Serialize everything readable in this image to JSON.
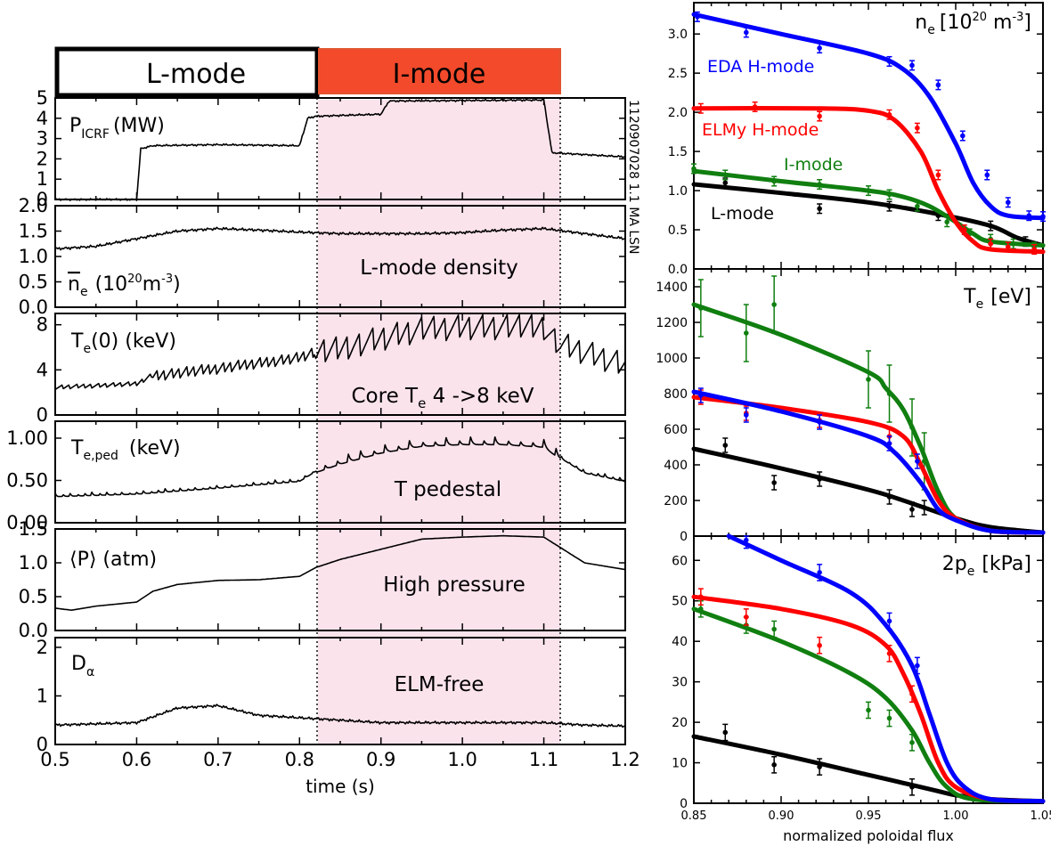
{
  "colors": {
    "imode_band": "#fbe3ec",
    "imode_bar": "#f24a2b",
    "blue": "#0000ff",
    "red": "#ff0000",
    "green": "#107f10",
    "black": "#000000"
  },
  "mode_bar": {
    "lmode_label": "L-mode",
    "imode_label": "I-mode"
  },
  "shot_label": "1120907028  1.1 MA LSN",
  "left_xaxis": {
    "label": "time (s)",
    "ticks": [
      "0.5",
      "0.6",
      "0.7",
      "0.8",
      "0.9",
      "1.0",
      "1.1",
      "1.2"
    ]
  },
  "right_xaxis": {
    "label": "normalized poloidal flux",
    "ticks": [
      "0.85",
      "0.90",
      "0.95",
      "1.00",
      "1.05"
    ]
  },
  "panels": {
    "picrf": {
      "label_main": "P",
      "label_sub": "ICRF",
      "label_rest": "(MW)",
      "yticks": [
        "0",
        "1",
        "2",
        "3",
        "4",
        "5"
      ]
    },
    "ne": {
      "label_main": "n",
      "label_sub": "e",
      "label_rest": "(10",
      "label_sup": "20",
      "label_rest2": "m",
      "label_sup2": "-3",
      "label_end": ")",
      "annotation": "L-mode density",
      "yticks": [
        "0.0",
        "0.5",
        "1.0",
        "1.5",
        "2.0"
      ]
    },
    "te0": {
      "label_main": "T",
      "label_sub": "e",
      "label_rest": "(0)  (keV)",
      "annotation_pre": "Core T",
      "annotation_sub": "e",
      "annotation_post": " 4 ->8 keV",
      "yticks": [
        "0",
        "4",
        "8"
      ]
    },
    "teped": {
      "label_main": "T",
      "label_sub": "e,ped",
      "label_rest": "(keV)",
      "annotation": "T pedestal",
      "yticks": [
        "0.00",
        "0.50",
        "1.00"
      ]
    },
    "pavg": {
      "label": "⟨P⟩ (atm)",
      "annotation": "High pressure",
      "yticks": [
        "0.0",
        "0.5",
        "1.0",
        "1.5"
      ]
    },
    "dalpha": {
      "label_main": "D",
      "label_sub": "α",
      "annotation": "ELM-free",
      "yticks": [
        "0",
        "1",
        "2"
      ]
    }
  },
  "right_panels": {
    "ne_prof": {
      "title_main": "n",
      "title_sub": "e",
      "title_rest": "[10",
      "title_sup": "20",
      "title_rest2": " m",
      "title_sup2": "-3",
      "title_end": "]",
      "yticks": [
        "0.0",
        "0.5",
        "1.0",
        "1.5",
        "2.0",
        "2.5",
        "3.0"
      ],
      "legend": {
        "eda": "EDA H-mode",
        "elmy": "ELMy H-mode",
        "imode": "I-mode",
        "lmode": "L-mode"
      }
    },
    "te_prof": {
      "title_main": "T",
      "title_sub": "e",
      "title_rest": "[eV]",
      "yticks": [
        "0",
        "200",
        "400",
        "600",
        "800",
        "1000",
        "1200",
        "1400"
      ]
    },
    "pe_prof": {
      "title": "2p",
      "title_sub": "e",
      "title_rest": "[kPa]",
      "yticks": [
        "0",
        "10",
        "20",
        "30",
        "40",
        "50",
        "60"
      ]
    }
  },
  "chart_data": [
    {
      "type": "line",
      "title": "",
      "xlabel": "time (s)",
      "xlim": [
        0.5,
        1.2
      ],
      "imode_window": [
        0.82,
        1.12
      ],
      "series": [
        {
          "name": "P_ICRF (MW)",
          "ylim": [
            0,
            5
          ],
          "x": [
            0.5,
            0.6,
            0.605,
            0.62,
            0.7,
            0.8,
            0.81,
            0.82,
            0.9,
            0.91,
            1.1,
            1.11,
            1.2
          ],
          "y": [
            0,
            0,
            2.5,
            2.65,
            2.7,
            2.65,
            4.0,
            4.1,
            4.2,
            4.85,
            4.9,
            2.3,
            2.1
          ]
        },
        {
          "name": "line-averaged n_e (10^20 m^-3)",
          "ylim": [
            0,
            2
          ],
          "x": [
            0.5,
            0.55,
            0.6,
            0.65,
            0.7,
            0.75,
            0.8,
            0.85,
            0.9,
            0.95,
            1.0,
            1.05,
            1.1,
            1.15,
            1.2
          ],
          "y": [
            1.15,
            1.2,
            1.35,
            1.5,
            1.55,
            1.52,
            1.48,
            1.45,
            1.45,
            1.45,
            1.47,
            1.52,
            1.55,
            1.45,
            1.35
          ]
        },
        {
          "name": "T_e(0) (keV)",
          "ylim": [
            0,
            9
          ],
          "x": [
            0.5,
            0.6,
            0.62,
            0.7,
            0.8,
            0.82,
            0.9,
            0.95,
            1.0,
            1.05,
            1.1,
            1.12,
            1.2
          ],
          "y": [
            2.5,
            2.8,
            3.6,
            4.2,
            5.2,
            5.6,
            7.0,
            7.8,
            8.0,
            8.0,
            8.0,
            6.5,
            4.6
          ]
        },
        {
          "name": "T_e,ped (keV)",
          "ylim": [
            0,
            1.2
          ],
          "x": [
            0.5,
            0.6,
            0.7,
            0.8,
            0.82,
            0.85,
            0.9,
            0.95,
            1.0,
            1.05,
            1.1,
            1.12,
            1.15,
            1.2
          ],
          "y": [
            0.32,
            0.35,
            0.42,
            0.5,
            0.62,
            0.72,
            0.85,
            0.93,
            0.95,
            0.95,
            0.92,
            0.78,
            0.6,
            0.5
          ]
        },
        {
          "name": "<P> (atm)",
          "ylim": [
            0,
            1.5
          ],
          "x": [
            0.5,
            0.52,
            0.55,
            0.6,
            0.62,
            0.65,
            0.7,
            0.75,
            0.8,
            0.82,
            0.85,
            0.9,
            0.95,
            1.0,
            1.05,
            1.1,
            1.15,
            1.2
          ],
          "y": [
            0.33,
            0.3,
            0.36,
            0.42,
            0.58,
            0.68,
            0.74,
            0.75,
            0.8,
            0.93,
            1.05,
            1.2,
            1.35,
            1.38,
            1.4,
            1.38,
            1.0,
            0.9
          ]
        },
        {
          "name": "D_alpha",
          "ylim": [
            0,
            2.2
          ],
          "x": [
            0.5,
            0.6,
            0.65,
            0.7,
            0.75,
            0.8,
            0.85,
            0.9,
            0.95,
            1.0,
            1.05,
            1.1,
            1.15,
            1.2
          ],
          "y": [
            0.4,
            0.45,
            0.75,
            0.8,
            0.6,
            0.55,
            0.5,
            0.45,
            0.45,
            0.45,
            0.45,
            0.45,
            0.4,
            0.38
          ]
        }
      ]
    },
    {
      "type": "scatter",
      "title": "n_e [10^20 m^-3]",
      "xlabel": "",
      "ylabel": "",
      "xlim": [
        0.85,
        1.05
      ],
      "ylim": [
        0,
        3.4
      ],
      "series": [
        {
          "name": "EDA H-mode",
          "color": "blue",
          "fit": {
            "x": [
              0.85,
              0.9,
              0.95,
              0.97,
              0.985,
              1.0,
              1.01,
              1.02,
              1.03,
              1.05
            ],
            "y": [
              3.25,
              3.0,
              2.75,
              2.55,
              2.2,
              1.6,
              1.1,
              0.8,
              0.68,
              0.65
            ]
          },
          "points": {
            "x": [
              0.852,
              0.88,
              0.922,
              0.962,
              0.975,
              0.99,
              1.004,
              1.018,
              1.03,
              1.042,
              1.05
            ],
            "y": [
              3.22,
              3.02,
              2.82,
              2.65,
              2.6,
              2.35,
              1.7,
              1.2,
              0.85,
              0.68,
              0.67
            ]
          }
        },
        {
          "name": "ELMy H-mode",
          "color": "red",
          "fit": {
            "x": [
              0.85,
              0.92,
              0.95,
              0.965,
              0.98,
              0.99,
              1.0,
              1.01,
              1.02,
              1.05
            ],
            "y": [
              2.05,
              2.05,
              2.02,
              1.9,
              1.5,
              1.0,
              0.6,
              0.35,
              0.25,
              0.22
            ]
          },
          "points": {
            "x": [
              0.854,
              0.885,
              0.922,
              0.962,
              0.978,
              0.99,
              1.005,
              1.02,
              1.03,
              1.045
            ],
            "y": [
              2.05,
              2.07,
              1.95,
              1.97,
              1.8,
              1.2,
              0.5,
              0.32,
              0.28,
              0.25
            ]
          }
        },
        {
          "name": "I-mode",
          "color": "green",
          "fit": {
            "x": [
              0.85,
              0.9,
              0.95,
              0.97,
              0.985,
              1.0,
              1.01,
              1.02,
              1.05
            ],
            "y": [
              1.25,
              1.12,
              1.0,
              0.92,
              0.8,
              0.6,
              0.45,
              0.35,
              0.3
            ]
          },
          "points": {
            "x": [
              0.85,
              0.868,
              0.896,
              0.922,
              0.95,
              0.962,
              0.978,
              0.995,
              1.008,
              1.02,
              1.033,
              1.045
            ],
            "y": [
              1.28,
              1.2,
              1.12,
              1.08,
              1.0,
              0.95,
              0.8,
              0.6,
              0.45,
              0.38,
              0.32,
              0.28
            ]
          }
        },
        {
          "name": "L-mode",
          "color": "black",
          "fit": {
            "x": [
              0.85,
              0.9,
              0.95,
              0.99,
              1.02,
              1.035,
              1.05
            ],
            "y": [
              1.08,
              0.97,
              0.85,
              0.7,
              0.55,
              0.4,
              0.3
            ]
          },
          "points": {
            "x": [
              0.868,
              0.922,
              0.962,
              0.99,
              1.02,
              1.04
            ],
            "y": [
              1.1,
              0.77,
              0.8,
              0.68,
              0.55,
              0.35
            ]
          }
        }
      ]
    },
    {
      "type": "scatter",
      "title": "T_e [eV]",
      "xlim": [
        0.85,
        1.05
      ],
      "ylim": [
        0,
        1500
      ],
      "series": [
        {
          "name": "EDA H-mode",
          "color": "blue",
          "fit": {
            "x": [
              0.85,
              0.9,
              0.95,
              0.965,
              0.98,
              0.99,
              1.0,
              1.02,
              1.05
            ],
            "y": [
              810,
              700,
              560,
              470,
              300,
              150,
              90,
              30,
              20
            ]
          },
          "points": {
            "x": [
              0.854,
              0.88,
              0.922,
              0.962,
              0.978
            ],
            "y": [
              790,
              680,
              640,
              520,
              420
            ]
          }
        },
        {
          "name": "ELMy H-mode",
          "color": "red",
          "fit": {
            "x": [
              0.85,
              0.9,
              0.95,
              0.97,
              0.98,
              0.99,
              1.0,
              1.02,
              1.05
            ],
            "y": [
              780,
              720,
              640,
              560,
              400,
              200,
              100,
              30,
              20
            ]
          },
          "points": {
            "x": [
              0.854,
              0.88,
              0.922,
              0.962
            ],
            "y": [
              780,
              690,
              650,
              560
            ]
          }
        },
        {
          "name": "I-mode",
          "color": "green",
          "fit": {
            "x": [
              0.85,
              0.9,
              0.95,
              0.96,
              0.97,
              0.98,
              0.99,
              1.0,
              1.02,
              1.05
            ],
            "y": [
              1300,
              1130,
              920,
              830,
              710,
              500,
              250,
              100,
              30,
              20
            ]
          },
          "points": {
            "x": [
              0.854,
              0.88,
              0.896,
              0.95,
              0.962,
              0.975,
              0.982
            ],
            "y": [
              1280,
              1140,
              1300,
              880,
              800,
              610,
              420
            ]
          }
        },
        {
          "name": "L-mode",
          "color": "black",
          "fit": {
            "x": [
              0.85,
              0.9,
              0.95,
              0.97,
              1.0,
              1.02,
              1.05
            ],
            "y": [
              490,
              380,
              260,
              200,
              100,
              50,
              20
            ]
          },
          "points": {
            "x": [
              0.868,
              0.896,
              0.922,
              0.962,
              0.975,
              0.982
            ],
            "y": [
              510,
              300,
              320,
              220,
              150,
              160
            ]
          }
        }
      ]
    },
    {
      "type": "scatter",
      "title": "2p_e [kPa]",
      "xlim": [
        0.85,
        1.05
      ],
      "ylim": [
        0,
        66
      ],
      "series": [
        {
          "name": "EDA H-mode",
          "color": "blue",
          "fit": {
            "x": [
              0.87,
              0.9,
              0.94,
              0.96,
              0.975,
              0.985,
              0.995,
              1.005,
              1.02,
              1.05
            ],
            "y": [
              66,
              60,
              52,
              44,
              34,
              22,
              10,
              4,
              1,
              0.5
            ]
          },
          "points": {
            "x": [
              0.88,
              0.922,
              0.962,
              0.978
            ],
            "y": [
              65,
              57,
              45,
              34
            ]
          }
        },
        {
          "name": "ELMy H-mode",
          "color": "red",
          "fit": {
            "x": [
              0.85,
              0.9,
              0.94,
              0.96,
              0.97,
              0.98,
              0.99,
              1.0,
              1.02,
              1.05
            ],
            "y": [
              51,
              48,
              44,
              39,
              32,
              22,
              10,
              4,
              1,
              0.5
            ]
          },
          "points": {
            "x": [
              0.854,
              0.88,
              0.922,
              0.962,
              0.975
            ],
            "y": [
              51,
              46,
              39,
              37,
              27
            ]
          }
        },
        {
          "name": "I-mode",
          "color": "green",
          "fit": {
            "x": [
              0.85,
              0.9,
              0.94,
              0.96,
              0.975,
              0.985,
              0.995,
              1.01,
              1.05
            ],
            "y": [
              48,
              40,
              32,
              26,
              18,
              10,
              4,
              1,
              0.5
            ]
          },
          "points": {
            "x": [
              0.854,
              0.88,
              0.896,
              0.95,
              0.962,
              0.975
            ],
            "y": [
              48,
              44,
              43,
              23,
              21,
              15
            ]
          }
        },
        {
          "name": "L-mode",
          "color": "black",
          "fit": {
            "x": [
              0.85,
              0.9,
              0.95,
              0.97,
              0.99,
              1.0,
              1.02,
              1.05
            ],
            "y": [
              16.5,
              12,
              7,
              5,
              3,
              2,
              1,
              0.5
            ]
          },
          "points": {
            "x": [
              0.868,
              0.896,
              0.922,
              0.975
            ],
            "y": [
              17.5,
              9.5,
              9,
              4
            ]
          }
        }
      ]
    }
  ]
}
